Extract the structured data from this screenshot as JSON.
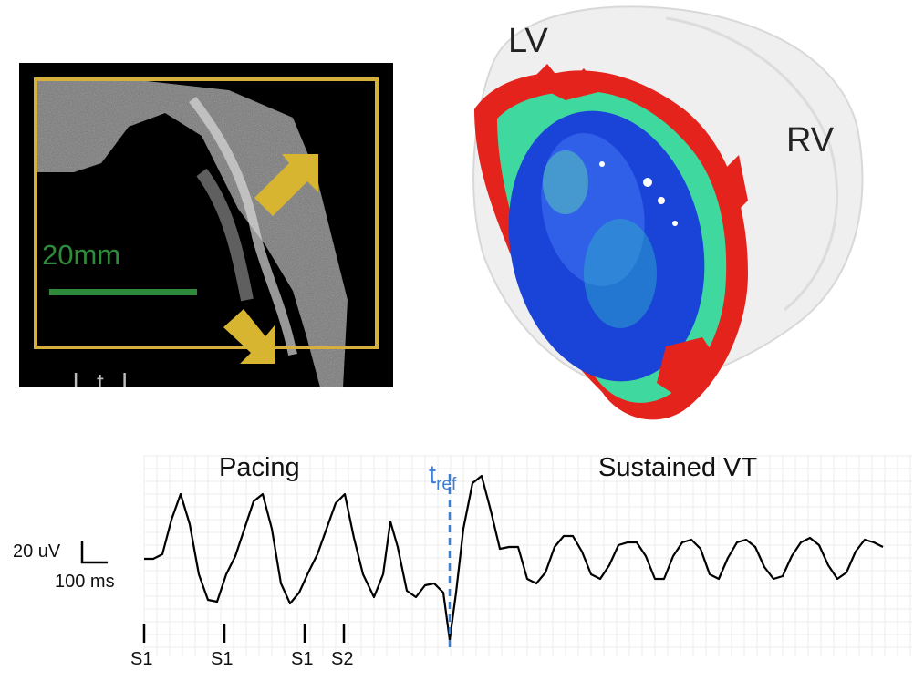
{
  "mri": {
    "scale_label": "20mm",
    "bottom_text": "l t l"
  },
  "heart": {
    "lv_label": "LV",
    "rv_label": "RV"
  },
  "ecg": {
    "pacing_label": "Pacing",
    "vt_label": "Sustained VT",
    "tref_main": "t",
    "tref_sub": "ref",
    "scalebar_voltage": "20 uV",
    "scalebar_time": "100 ms",
    "stimuli": [
      "S1",
      "S1",
      "S1",
      "S2"
    ]
  },
  "colors": {
    "frame": "#d6b03a",
    "arrow": "#d8b531",
    "scale_bar": "#2e8b3a",
    "tref_line": "#3a7fd5",
    "scar_red": "#e4231c",
    "endo_blue": "#1a44d8"
  }
}
